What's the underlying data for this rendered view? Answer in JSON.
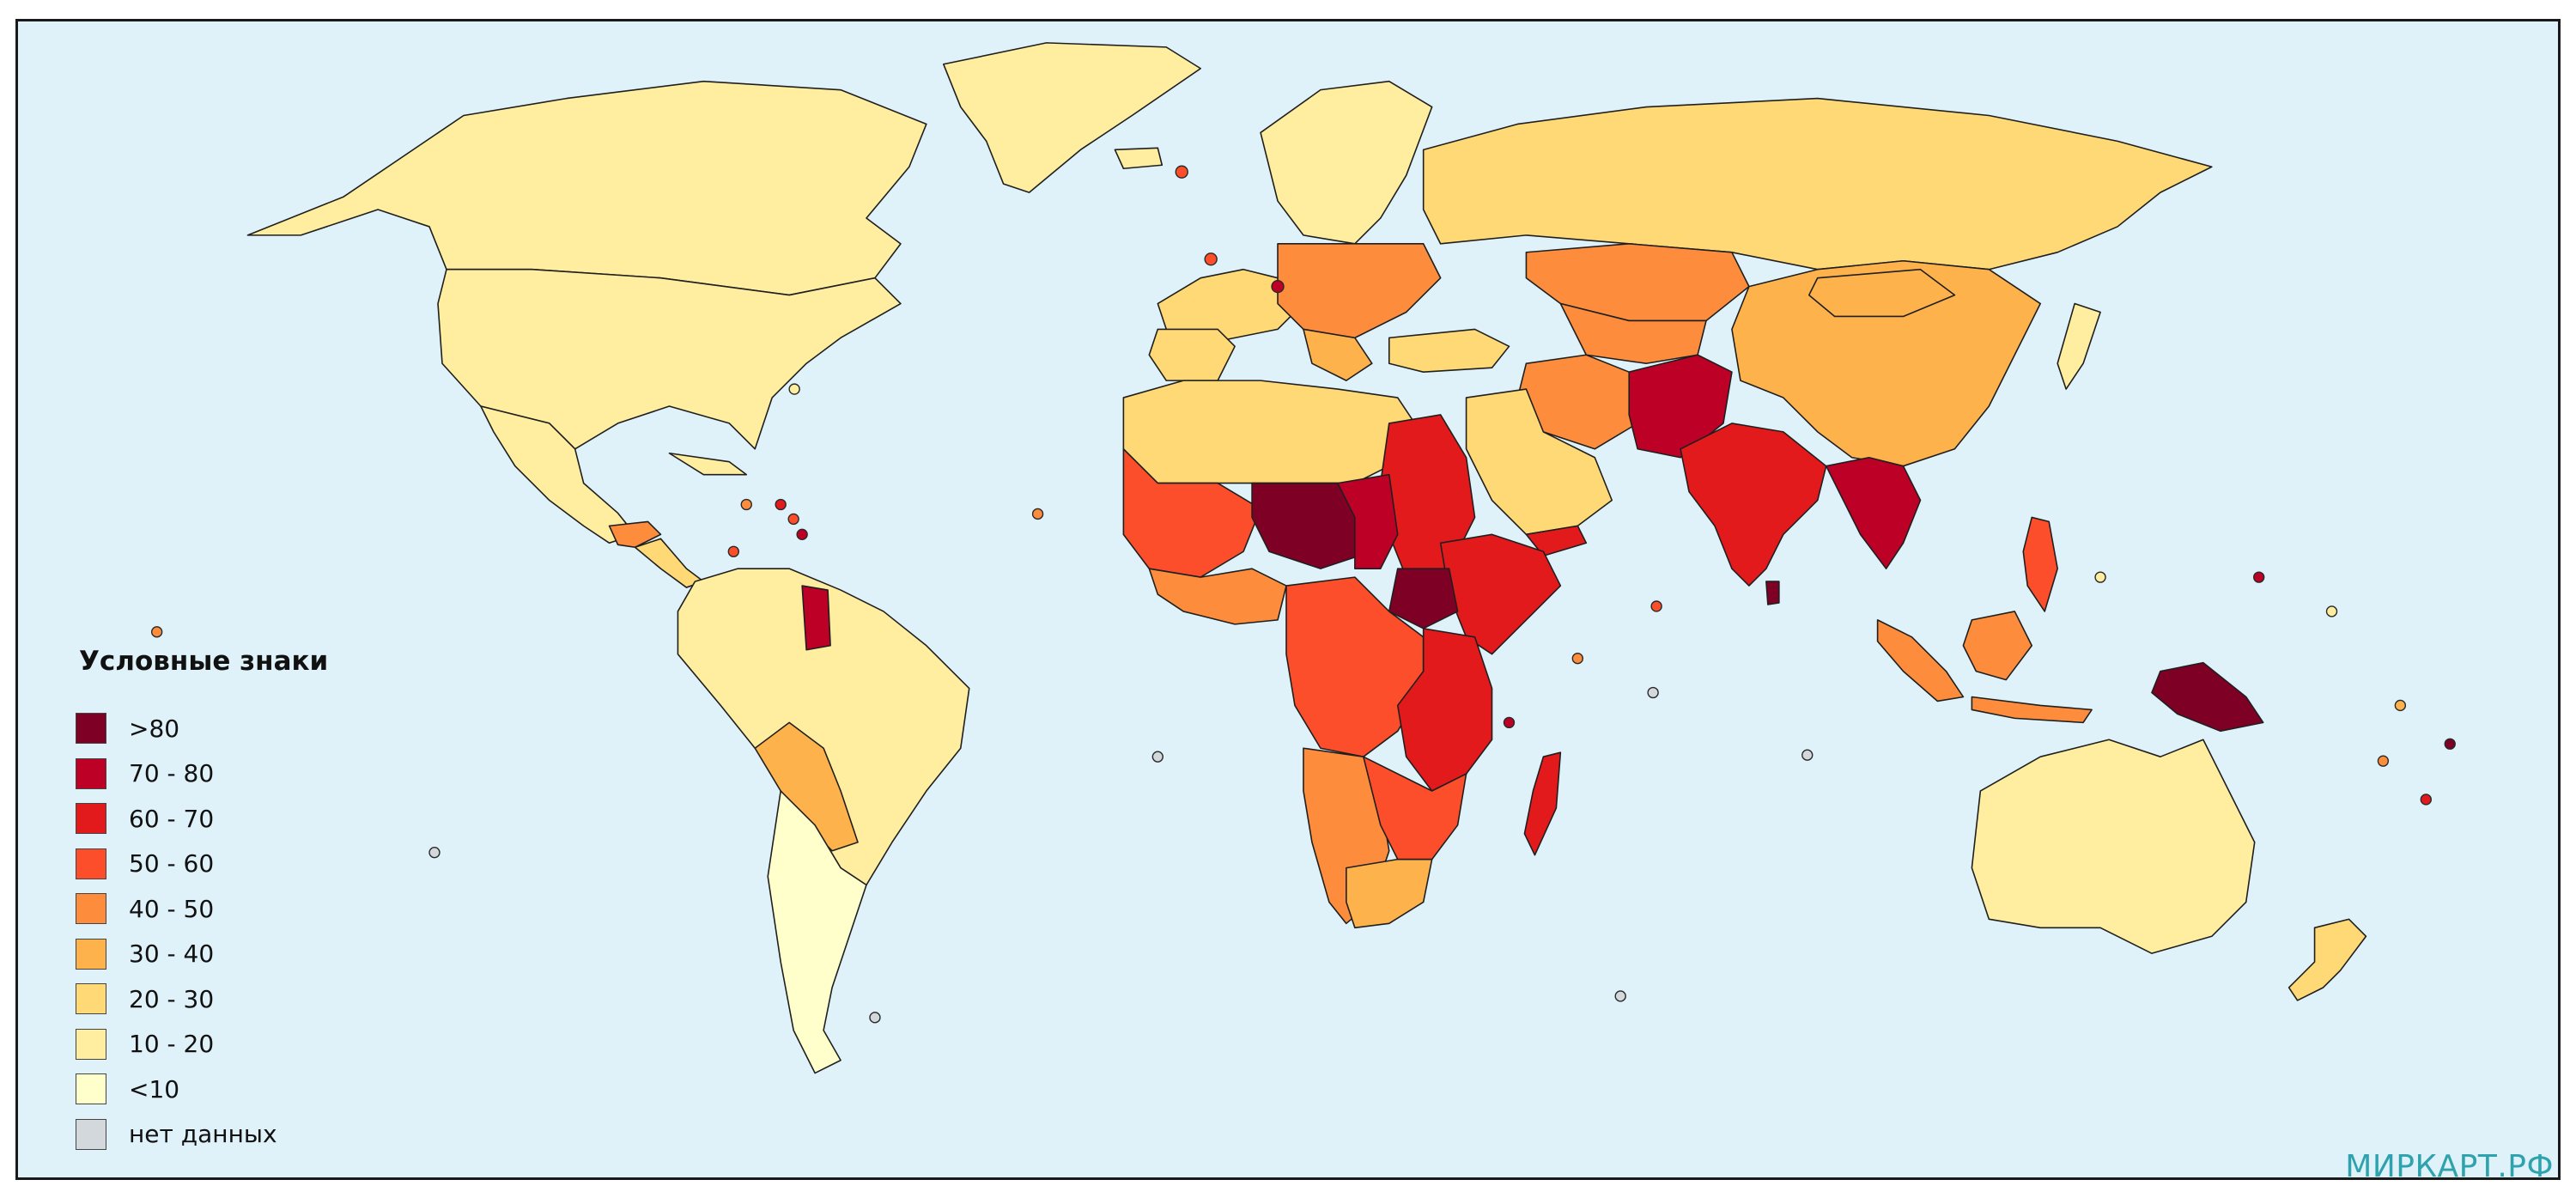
{
  "legend": {
    "title": "Условные знаки",
    "classes": [
      {
        "label": ">80",
        "color": "#7f0025"
      },
      {
        "label": "70 - 80",
        "color": "#bd0026"
      },
      {
        "label": "60 - 70",
        "color": "#e31a1c"
      },
      {
        "label": "50 - 60",
        "color": "#fc4e2a"
      },
      {
        "label": "40 - 50",
        "color": "#fd8d3c"
      },
      {
        "label": "30 - 40",
        "color": "#feb24c"
      },
      {
        "label": "20 - 30",
        "color": "#fed976"
      },
      {
        "label": "10 - 20",
        "color": "#ffeda0"
      },
      {
        "label": "<10",
        "color": "#ffffcc"
      },
      {
        "label": "нет данных",
        "color": "#d3d8dc"
      }
    ]
  },
  "watermark": "МИРКАРТ.РФ",
  "colors": {
    "ocean": "#dff1f9",
    "border": "#1f1f1f"
  }
}
